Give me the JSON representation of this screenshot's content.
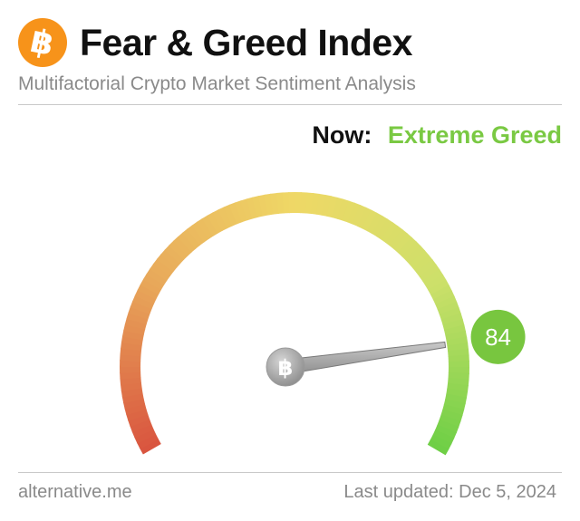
{
  "header": {
    "logo_icon": "bitcoin-icon",
    "logo_symbol": "฿",
    "title": "Fear & Greed Index",
    "subtitle": "Multifactorial Crypto Market Sentiment Analysis"
  },
  "status": {
    "now_label": "Now:",
    "now_value": "Extreme Greed",
    "now_color": "#7ac943"
  },
  "gauge": {
    "value": 84,
    "min": 0,
    "max": 100,
    "value_badge_color": "#78c63f",
    "colors": [
      "#d9553f",
      "#e8a85a",
      "#efd866",
      "#cde06a",
      "#6fcf46"
    ],
    "hub_icon": "bitcoin-icon",
    "hub_symbol": "฿"
  },
  "footer": {
    "source": "alternative.me",
    "last_updated": "Last updated: Dec 5, 2024"
  }
}
